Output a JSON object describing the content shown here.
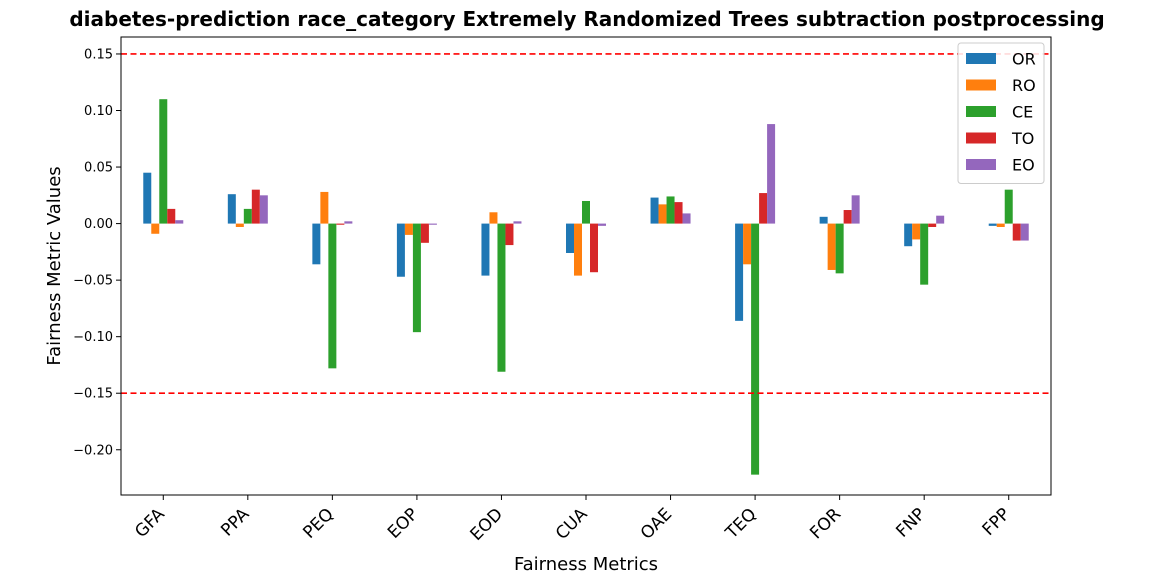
{
  "chart_data": {
    "type": "bar",
    "title": "diabetes-prediction race_category Extremely Randomized Trees subtraction postprocessing",
    "xlabel": "Fairness Metrics",
    "ylabel": "Fairness Metric Values",
    "ylim": [
      -0.24,
      0.165
    ],
    "yticks": [
      "0.15",
      "0.10",
      "0.05",
      "0.00",
      "−0.05",
      "−0.10",
      "−0.15",
      "−0.20"
    ],
    "ytick_values": [
      0.15,
      0.1,
      0.05,
      0.0,
      -0.05,
      -0.1,
      -0.15,
      -0.2
    ],
    "categories": [
      "GFA",
      "PPA",
      "PEQ",
      "EOP",
      "EOD",
      "CUA",
      "OAE",
      "TEQ",
      "FOR",
      "FNP",
      "FPP"
    ],
    "series": [
      {
        "name": "OR",
        "color": "#1f77b4",
        "values": [
          0.045,
          0.026,
          -0.036,
          -0.047,
          -0.046,
          -0.026,
          0.023,
          -0.086,
          0.006,
          -0.02,
          -0.002
        ]
      },
      {
        "name": "RO",
        "color": "#ff7f0e",
        "values": [
          -0.009,
          -0.003,
          0.028,
          -0.01,
          0.01,
          -0.046,
          0.017,
          -0.036,
          -0.041,
          -0.014,
          -0.003
        ]
      },
      {
        "name": "CE",
        "color": "#2ca02c",
        "values": [
          0.11,
          0.013,
          -0.128,
          -0.096,
          -0.131,
          0.02,
          0.024,
          -0.222,
          -0.044,
          -0.054,
          0.03
        ]
      },
      {
        "name": "TO",
        "color": "#d62728",
        "values": [
          0.013,
          0.03,
          -0.001,
          -0.017,
          -0.019,
          -0.043,
          0.019,
          0.027,
          0.012,
          -0.003,
          -0.015
        ]
      },
      {
        "name": "EO",
        "color": "#9467bd",
        "values": [
          0.003,
          0.025,
          0.002,
          -0.001,
          0.002,
          -0.002,
          0.009,
          0.088,
          0.025,
          0.007,
          -0.015
        ]
      }
    ],
    "reference_lines": [
      0.15,
      -0.15
    ],
    "reference_line_color": "#ff0000",
    "legend_position": "top-right",
    "grid": false
  }
}
